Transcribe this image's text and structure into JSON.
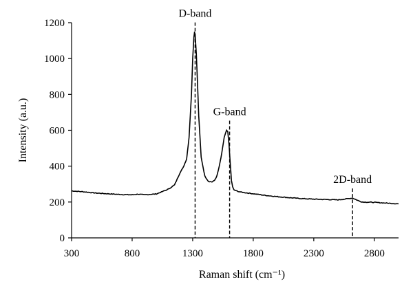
{
  "chart_data": {
    "type": "line",
    "xlabel": "Raman shift (cm⁻¹)",
    "ylabel": "Intensity (a.u.)",
    "xlim": [
      300,
      3000
    ],
    "ylim": [
      0,
      1200
    ],
    "xticks": [
      300,
      800,
      1300,
      1800,
      2300,
      2800
    ],
    "yticks": [
      0,
      200,
      400,
      600,
      800,
      1000,
      1200
    ],
    "grid": false,
    "legend": "none",
    "line_color": "#000000",
    "series": [
      {
        "x": [
          300,
          400,
          500,
          600,
          700,
          800,
          850,
          900,
          1000,
          1050,
          1100,
          1150,
          1180,
          1200,
          1220,
          1250,
          1270,
          1290,
          1300,
          1310,
          1315,
          1320,
          1330,
          1340,
          1350,
          1370,
          1400,
          1430,
          1460,
          1480,
          1500,
          1520,
          1540,
          1560,
          1580,
          1590,
          1600,
          1610,
          1620,
          1630,
          1640,
          1660,
          1700,
          1800,
          1900,
          2000,
          2100,
          2200,
          2300,
          2400,
          2500,
          2550,
          2600,
          2620,
          2640,
          2680,
          2700,
          2800,
          2900,
          3000
        ],
        "y": [
          262,
          257,
          250,
          246,
          242,
          240,
          244,
          240,
          245,
          258,
          272,
          295,
          340,
          370,
          390,
          440,
          560,
          800,
          1000,
          1120,
          1148,
          1135,
          1030,
          860,
          680,
          450,
          345,
          315,
          312,
          320,
          345,
          400,
          470,
          560,
          600,
          590,
          520,
          420,
          320,
          285,
          268,
          262,
          255,
          246,
          237,
          230,
          224,
          219,
          216,
          214,
          212,
          216,
          220,
          222,
          216,
          204,
          200,
          198,
          194,
          190
        ]
      }
    ],
    "annotations": [
      {
        "label": "D-band",
        "x": 1320,
        "y": 1148
      },
      {
        "label": "G-band",
        "x": 1605,
        "y": 600
      },
      {
        "label": "2D-band",
        "x": 2620,
        "y": 222
      }
    ]
  }
}
